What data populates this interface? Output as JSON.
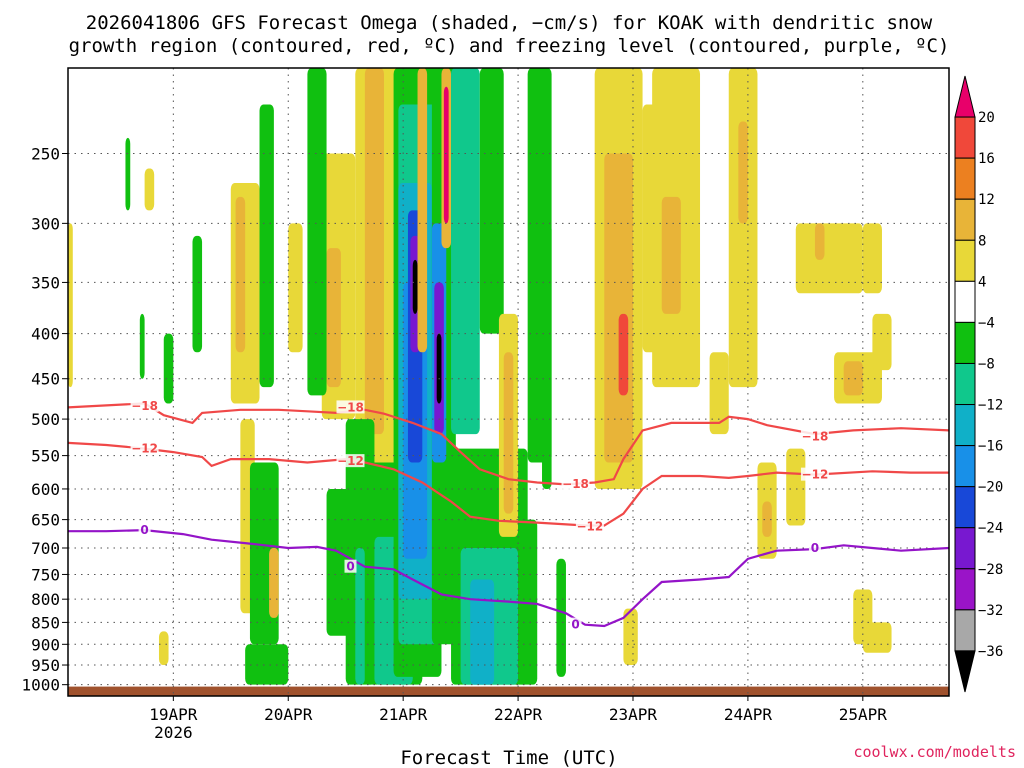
{
  "chart_data": {
    "type": "heatmap",
    "title_lines": [
      "2026041806 GFS Forecast Omega (shaded, −cm/s) for KOAK with dendritic snow",
      "growth region (contoured, red, ºC) and freezing level (contoured, purple, ºC)"
    ],
    "xlabel": "Forecast Time (UTC)",
    "credit": "coolwx.com/modelts",
    "x_range_hours": [
      -16,
      168
    ],
    "x_ticks": [
      {
        "label": "19APR",
        "sub": "2026",
        "hour": 6
      },
      {
        "label": "20APR",
        "sub": "",
        "hour": 30
      },
      {
        "label": "21APR",
        "sub": "",
        "hour": 54
      },
      {
        "label": "22APR",
        "sub": "",
        "hour": 78
      },
      {
        "label": "23APR",
        "sub": "",
        "hour": 102
      },
      {
        "label": "24APR",
        "sub": "",
        "hour": 126
      },
      {
        "label": "25APR",
        "sub": "",
        "hour": 150
      }
    ],
    "y_axis": "pressure (hPa)",
    "y_range": [
      200,
      1030
    ],
    "y_ticks": [
      250,
      300,
      350,
      400,
      450,
      500,
      550,
      600,
      650,
      700,
      750,
      800,
      850,
      900,
      950,
      1000
    ],
    "colorbar": {
      "labels": [
        "20",
        "16",
        "12",
        "8",
        "4",
        "−4",
        "−8",
        "−12",
        "−16",
        "−20",
        "−24",
        "−28",
        "−32",
        "−36"
      ],
      "colors": [
        "#e8006a",
        "#f0483a",
        "#ec8020",
        "#e8b438",
        "#e8d838",
        "#ffffff",
        "#10c010",
        "#10c88c",
        "#10b0c8",
        "#1890e8",
        "#1848d8",
        "#7818d0",
        "#9a14c8",
        "#a8a8a8",
        "#000000"
      ]
    },
    "contours": {
      "dgz_minus18": {
        "label": "−18",
        "color": "#f04848",
        "points": [
          [
            -16,
            485
          ],
          [
            0,
            480
          ],
          [
            4,
            495
          ],
          [
            10,
            505
          ],
          [
            12,
            492
          ],
          [
            20,
            488
          ],
          [
            28,
            488
          ],
          [
            34,
            490
          ],
          [
            40,
            492
          ],
          [
            46,
            488
          ],
          [
            50,
            493
          ],
          [
            56,
            505
          ],
          [
            62,
            520
          ],
          [
            66,
            545
          ],
          [
            70,
            570
          ],
          [
            76,
            585
          ],
          [
            82,
            590
          ],
          [
            88,
            593
          ],
          [
            94,
            590
          ],
          [
            98,
            585
          ],
          [
            100,
            555
          ],
          [
            104,
            515
          ],
          [
            110,
            505
          ],
          [
            120,
            505
          ],
          [
            122,
            497
          ],
          [
            126,
            500
          ],
          [
            130,
            508
          ],
          [
            140,
            520
          ],
          [
            148,
            515
          ],
          [
            158,
            512
          ],
          [
            168,
            515
          ]
        ]
      },
      "dgz_minus12": {
        "label": "−12",
        "color": "#f04848",
        "points": [
          [
            -16,
            532
          ],
          [
            -8,
            535
          ],
          [
            0,
            540
          ],
          [
            6,
            545
          ],
          [
            12,
            552
          ],
          [
            14,
            565
          ],
          [
            18,
            555
          ],
          [
            26,
            555
          ],
          [
            34,
            560
          ],
          [
            42,
            555
          ],
          [
            46,
            560
          ],
          [
            52,
            570
          ],
          [
            58,
            590
          ],
          [
            64,
            620
          ],
          [
            68,
            645
          ],
          [
            74,
            652
          ],
          [
            82,
            655
          ],
          [
            92,
            660
          ],
          [
            96,
            660
          ],
          [
            100,
            640
          ],
          [
            104,
            600
          ],
          [
            108,
            580
          ],
          [
            116,
            580
          ],
          [
            122,
            583
          ],
          [
            126,
            580
          ],
          [
            132,
            575
          ],
          [
            140,
            578
          ],
          [
            152,
            573
          ],
          [
            160,
            575
          ],
          [
            168,
            575
          ]
        ]
      },
      "freezing_0c": {
        "label": "0",
        "color": "#9414c8",
        "points": [
          [
            -16,
            670
          ],
          [
            -8,
            670
          ],
          [
            0,
            668
          ],
          [
            8,
            675
          ],
          [
            14,
            685
          ],
          [
            22,
            692
          ],
          [
            30,
            700
          ],
          [
            36,
            698
          ],
          [
            40,
            705
          ],
          [
            46,
            735
          ],
          [
            52,
            740
          ],
          [
            56,
            760
          ],
          [
            62,
            790
          ],
          [
            68,
            800
          ],
          [
            76,
            805
          ],
          [
            82,
            810
          ],
          [
            88,
            830
          ],
          [
            92,
            855
          ],
          [
            96,
            858
          ],
          [
            100,
            840
          ],
          [
            104,
            800
          ],
          [
            108,
            765
          ],
          [
            116,
            760
          ],
          [
            122,
            755
          ],
          [
            126,
            720
          ],
          [
            132,
            705
          ],
          [
            140,
            702
          ],
          [
            146,
            695
          ],
          [
            152,
            700
          ],
          [
            158,
            705
          ],
          [
            168,
            700
          ]
        ]
      }
    },
    "contour_labels": [
      {
        "text": "−18",
        "hour": 0,
        "p": 483,
        "color": "#f04848"
      },
      {
        "text": "−12",
        "hour": 0,
        "p": 540,
        "color": "#f04848"
      },
      {
        "text": "0",
        "hour": 0,
        "p": 668,
        "color": "#9414c8"
      },
      {
        "text": "−18",
        "hour": 43,
        "p": 485,
        "color": "#f04848"
      },
      {
        "text": "−12",
        "hour": 43,
        "p": 558,
        "color": "#f04848"
      },
      {
        "text": "0",
        "hour": 43,
        "p": 735,
        "color": "#9414c8"
      },
      {
        "text": "−18",
        "hour": 90,
        "p": 592,
        "color": "#f04848"
      },
      {
        "text": "−12",
        "hour": 93,
        "p": 662,
        "color": "#f04848"
      },
      {
        "text": "0",
        "hour": 90,
        "p": 855,
        "color": "#9414c8"
      },
      {
        "text": "−18",
        "hour": 140,
        "p": 523,
        "color": "#f04848"
      },
      {
        "text": "−12",
        "hour": 140,
        "p": 578,
        "color": "#f04848"
      },
      {
        "text": "0",
        "hour": 140,
        "p": 700,
        "color": "#9414c8"
      }
    ],
    "omega_blobs": [
      {
        "h0": -16,
        "h1": -15,
        "p0": 300,
        "p1": 460,
        "c": "#e8d838"
      },
      {
        "h0": -4,
        "h1": -3,
        "p0": 240,
        "p1": 290,
        "c": "#10c010"
      },
      {
        "h0": -1,
        "h1": 0,
        "p0": 380,
        "p1": 450,
        "c": "#10c010"
      },
      {
        "h0": 0,
        "h1": 2,
        "p0": 260,
        "p1": 290,
        "c": "#e8d838"
      },
      {
        "h0": 3,
        "h1": 5,
        "p0": 870,
        "p1": 950,
        "c": "#e8d838"
      },
      {
        "h0": 4,
        "h1": 6,
        "p0": 400,
        "p1": 480,
        "c": "#10c010"
      },
      {
        "h0": 10,
        "h1": 12,
        "p0": 310,
        "p1": 420,
        "c": "#10c010"
      },
      {
        "h0": 18,
        "h1": 24,
        "p0": 270,
        "p1": 480,
        "c": "#e8d838"
      },
      {
        "h0": 19,
        "h1": 21,
        "p0": 280,
        "p1": 420,
        "c": "#e8b438"
      },
      {
        "h0": 20,
        "h1": 23,
        "p0": 500,
        "p1": 830,
        "c": "#e8d838"
      },
      {
        "h0": 22,
        "h1": 28,
        "p0": 560,
        "p1": 900,
        "c": "#10c010"
      },
      {
        "h0": 21,
        "h1": 30,
        "p0": 900,
        "p1": 1000,
        "c": "#10c010"
      },
      {
        "h0": 26,
        "h1": 28,
        "p0": 700,
        "p1": 840,
        "c": "#e8b438"
      },
      {
        "h0": 24,
        "h1": 27,
        "p0": 220,
        "p1": 460,
        "c": "#10c010"
      },
      {
        "h0": 30,
        "h1": 33,
        "p0": 300,
        "p1": 420,
        "c": "#e8d838"
      },
      {
        "h0": 37,
        "h1": 44,
        "p0": 250,
        "p1": 500,
        "c": "#e8d838"
      },
      {
        "h0": 38,
        "h1": 41,
        "p0": 320,
        "p1": 460,
        "c": "#e8b438"
      },
      {
        "h0": 34,
        "h1": 38,
        "p0": 200,
        "p1": 470,
        "c": "#10c010"
      },
      {
        "h0": 38,
        "h1": 44,
        "p0": 600,
        "p1": 880,
        "c": "#10c010"
      },
      {
        "h0": 44,
        "h1": 54,
        "p0": 200,
        "p1": 600,
        "c": "#e8d838"
      },
      {
        "h0": 46,
        "h1": 50,
        "p0": 200,
        "p1": 520,
        "c": "#e8b438"
      },
      {
        "h0": 42,
        "h1": 48,
        "p0": 500,
        "p1": 1000,
        "c": "#10c010"
      },
      {
        "h0": 44,
        "h1": 46,
        "p0": 700,
        "p1": 1000,
        "c": "#10c88c"
      },
      {
        "h0": 46,
        "h1": 58,
        "p0": 560,
        "p1": 1000,
        "c": "#10c010"
      },
      {
        "h0": 48,
        "h1": 56,
        "p0": 680,
        "p1": 1000,
        "c": "#10c88c"
      },
      {
        "h0": 52,
        "h1": 62,
        "p0": 200,
        "p1": 980,
        "c": "#10c010"
      },
      {
        "h0": 53,
        "h1": 61,
        "p0": 220,
        "p1": 900,
        "c": "#10c88c"
      },
      {
        "h0": 53,
        "h1": 60,
        "p0": 270,
        "p1": 800,
        "c": "#10b0c8"
      },
      {
        "h0": 54,
        "h1": 59,
        "p0": 350,
        "p1": 720,
        "c": "#1890e8"
      },
      {
        "h0": 55,
        "h1": 58,
        "p0": 290,
        "p1": 560,
        "c": "#1848d8"
      },
      {
        "h0": 55.5,
        "h1": 57.5,
        "p0": 310,
        "p1": 420,
        "c": "#7818d0"
      },
      {
        "h0": 56,
        "h1": 57,
        "p0": 330,
        "p1": 380,
        "c": "#000000"
      },
      {
        "h0": 57,
        "h1": 59,
        "p0": 200,
        "p1": 420,
        "c": "#e8b438"
      },
      {
        "h0": 60,
        "h1": 65,
        "p0": 200,
        "p1": 900,
        "c": "#10c010"
      },
      {
        "h0": 60,
        "h1": 63,
        "p0": 300,
        "p1": 560,
        "c": "#1890e8"
      },
      {
        "h0": 60.5,
        "h1": 62.5,
        "p0": 350,
        "p1": 520,
        "c": "#7818d0"
      },
      {
        "h0": 61,
        "h1": 62,
        "p0": 400,
        "p1": 480,
        "c": "#000000"
      },
      {
        "h0": 62,
        "h1": 64,
        "p0": 200,
        "p1": 320,
        "c": "#e8b438"
      },
      {
        "h0": 62.5,
        "h1": 63.5,
        "p0": 210,
        "p1": 300,
        "c": "#e8006a"
      },
      {
        "h0": 64,
        "h1": 70,
        "p0": 200,
        "p1": 520,
        "c": "#10c88c"
      },
      {
        "h0": 64,
        "h1": 80,
        "p0": 540,
        "p1": 1000,
        "c": "#10c010"
      },
      {
        "h0": 66,
        "h1": 78,
        "p0": 700,
        "p1": 1000,
        "c": "#10c88c"
      },
      {
        "h0": 68,
        "h1": 73,
        "p0": 760,
        "p1": 1000,
        "c": "#10b0c8"
      },
      {
        "h0": 70,
        "h1": 75,
        "p0": 200,
        "p1": 400,
        "c": "#10c010"
      },
      {
        "h0": 74,
        "h1": 78,
        "p0": 380,
        "p1": 680,
        "c": "#e8d838"
      },
      {
        "h0": 75,
        "h1": 77,
        "p0": 420,
        "p1": 640,
        "c": "#e8b438"
      },
      {
        "h0": 78,
        "h1": 82,
        "p0": 650,
        "p1": 1000,
        "c": "#10c010"
      },
      {
        "h0": 80,
        "h1": 85,
        "p0": 200,
        "p1": 560,
        "c": "#10c010"
      },
      {
        "h0": 83,
        "h1": 85,
        "p0": 300,
        "p1": 600,
        "c": "#10c010"
      },
      {
        "h0": 86,
        "h1": 88,
        "p0": 720,
        "p1": 980,
        "c": "#10c010"
      },
      {
        "h0": 94,
        "h1": 104,
        "p0": 200,
        "p1": 600,
        "c": "#e8d838"
      },
      {
        "h0": 96,
        "h1": 102,
        "p0": 250,
        "p1": 560,
        "c": "#e8b438"
      },
      {
        "h0": 99,
        "h1": 101,
        "p0": 380,
        "p1": 470,
        "c": "#f0483a"
      },
      {
        "h0": 100,
        "h1": 103,
        "p0": 820,
        "p1": 950,
        "c": "#e8d838"
      },
      {
        "h0": 104,
        "h1": 108,
        "p0": 220,
        "p1": 420,
        "c": "#e8d838"
      },
      {
        "h0": 106,
        "h1": 116,
        "p0": 200,
        "p1": 460,
        "c": "#e8d838"
      },
      {
        "h0": 108,
        "h1": 112,
        "p0": 280,
        "p1": 380,
        "c": "#e8b438"
      },
      {
        "h0": 112,
        "h1": 116,
        "p0": 320,
        "p1": 450,
        "c": "#e8d838"
      },
      {
        "h0": 118,
        "h1": 122,
        "p0": 420,
        "p1": 520,
        "c": "#e8d838"
      },
      {
        "h0": 122,
        "h1": 128,
        "p0": 200,
        "p1": 460,
        "c": "#e8d838"
      },
      {
        "h0": 124,
        "h1": 126,
        "p0": 230,
        "p1": 300,
        "c": "#e8b438"
      },
      {
        "h0": 128,
        "h1": 132,
        "p0": 560,
        "p1": 720,
        "c": "#e8d838"
      },
      {
        "h0": 129,
        "h1": 131,
        "p0": 620,
        "p1": 680,
        "c": "#e8b438"
      },
      {
        "h0": 134,
        "h1": 138,
        "p0": 540,
        "p1": 660,
        "c": "#e8d838"
      },
      {
        "h0": 136,
        "h1": 150,
        "p0": 300,
        "p1": 360,
        "c": "#e8d838"
      },
      {
        "h0": 140,
        "h1": 142,
        "p0": 300,
        "p1": 330,
        "c": "#e8b438"
      },
      {
        "h0": 144,
        "h1": 154,
        "p0": 420,
        "p1": 480,
        "c": "#e8d838"
      },
      {
        "h0": 146,
        "h1": 150,
        "p0": 430,
        "p1": 470,
        "c": "#e8b438"
      },
      {
        "h0": 150,
        "h1": 154,
        "p0": 300,
        "p1": 360,
        "c": "#e8d838"
      },
      {
        "h0": 152,
        "h1": 156,
        "p0": 380,
        "p1": 440,
        "c": "#e8d838"
      },
      {
        "h0": 148,
        "h1": 152,
        "p0": 780,
        "p1": 900,
        "c": "#e8d838"
      },
      {
        "h0": 150,
        "h1": 156,
        "p0": 850,
        "p1": 920,
        "c": "#e8d838"
      }
    ]
  }
}
